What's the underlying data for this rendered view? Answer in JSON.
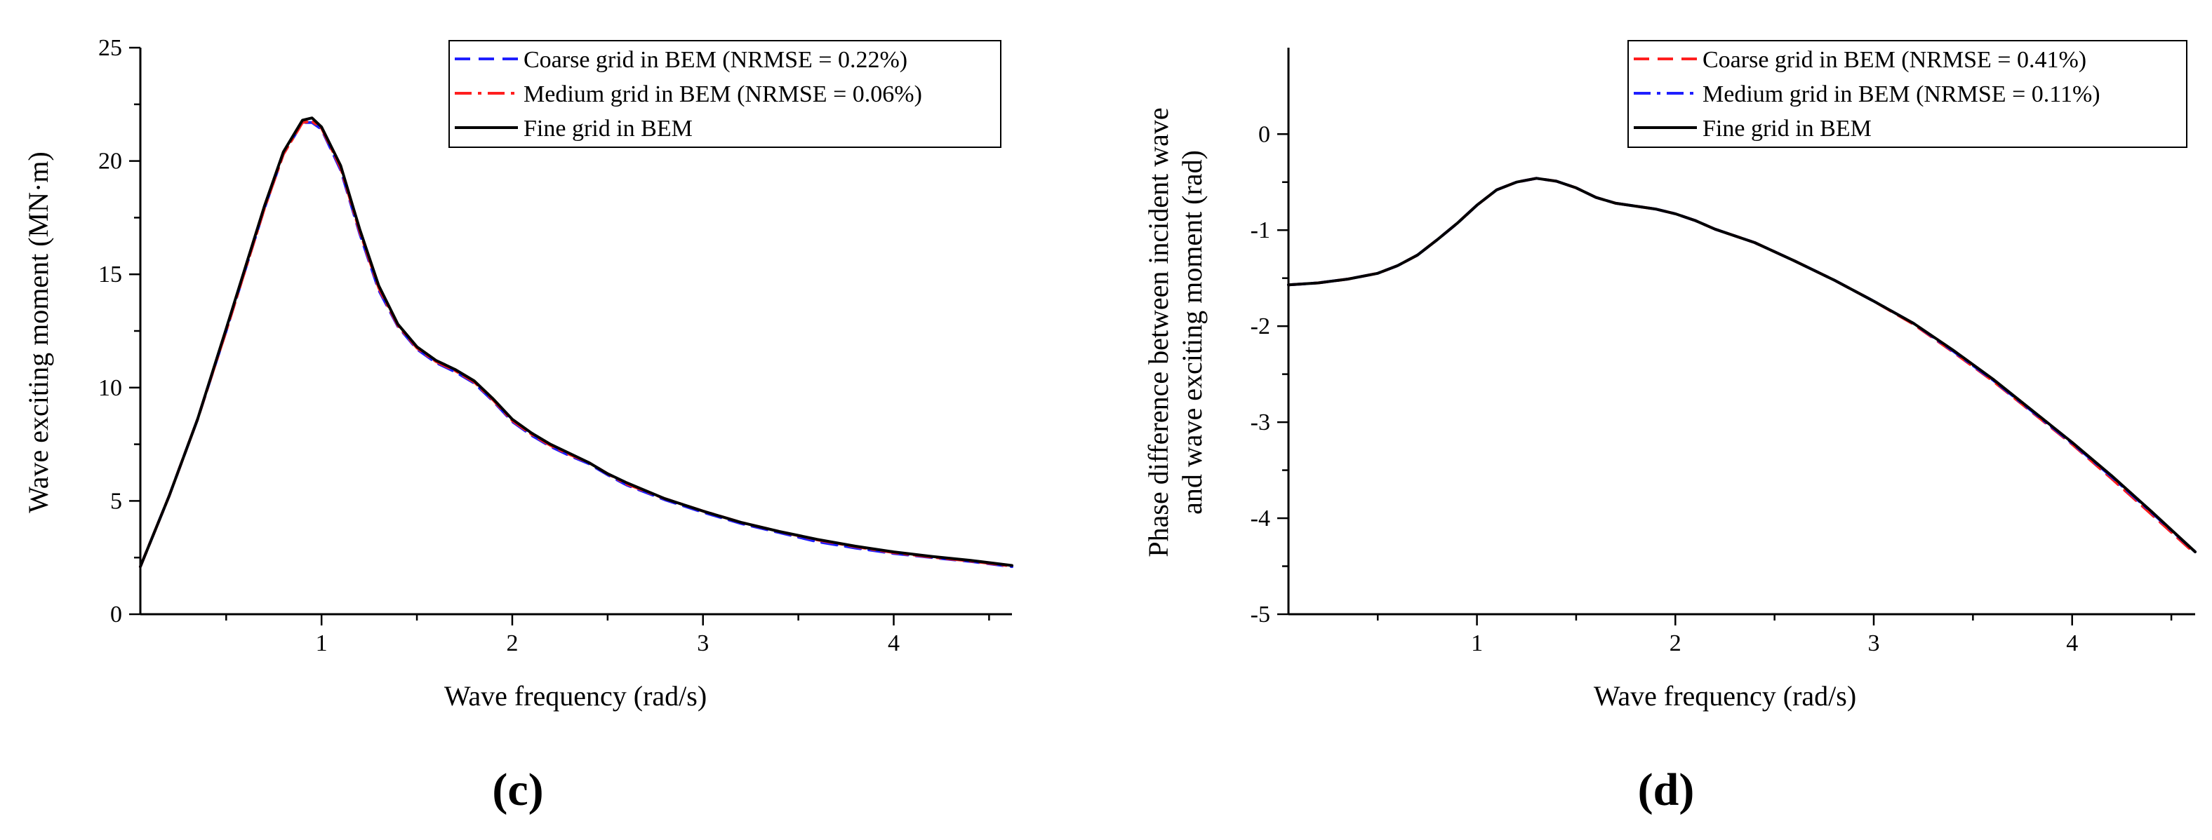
{
  "chart_data": [
    {
      "type": "line",
      "panel_label": "(c)",
      "title": "",
      "xlabel": "Wave frequency (rad/s)",
      "ylabel": "Wave exciting moment (MN·m)",
      "xlim": [
        0.05,
        4.62
      ],
      "ylim": [
        0,
        25
      ],
      "xticks": [
        1,
        2,
        3,
        4
      ],
      "yticks": [
        0,
        5,
        10,
        15,
        20,
        25
      ],
      "legend_position": "top-right",
      "grid": false,
      "x": [
        0.05,
        0.2,
        0.35,
        0.5,
        0.6,
        0.7,
        0.8,
        0.9,
        0.95,
        1.0,
        1.1,
        1.2,
        1.3,
        1.4,
        1.5,
        1.6,
        1.7,
        1.8,
        1.9,
        2.0,
        2.1,
        2.2,
        2.3,
        2.4,
        2.5,
        2.6,
        2.8,
        3.0,
        3.2,
        3.4,
        3.6,
        3.8,
        4.0,
        4.2,
        4.4,
        4.62
      ],
      "series": [
        {
          "name": "Coarse grid in BEM (NRMSE = 0.22%)",
          "color": "#1f1fff",
          "dash": "dashed",
          "values": [
            2.1,
            5.2,
            8.6,
            12.5,
            15.2,
            17.9,
            20.3,
            21.7,
            21.7,
            21.4,
            19.6,
            16.8,
            14.3,
            12.7,
            11.7,
            11.1,
            10.7,
            10.2,
            9.4,
            8.5,
            7.9,
            7.4,
            7.0,
            6.65,
            6.15,
            5.7,
            5.05,
            4.5,
            4.0,
            3.6,
            3.2,
            2.92,
            2.68,
            2.5,
            2.33,
            2.1
          ]
        },
        {
          "name": "Medium grid in BEM (NRMSE = 0.06%)",
          "color": "#ff1f1f",
          "dash": "dashdot",
          "values": [
            2.1,
            5.2,
            8.6,
            12.5,
            15.2,
            17.9,
            20.3,
            21.7,
            21.75,
            21.45,
            19.7,
            16.9,
            14.4,
            12.75,
            11.75,
            11.15,
            10.75,
            10.25,
            9.45,
            8.55,
            7.95,
            7.45,
            7.05,
            6.7,
            6.2,
            5.75,
            5.1,
            4.55,
            4.05,
            3.65,
            3.28,
            2.98,
            2.72,
            2.52,
            2.35,
            2.12
          ]
        },
        {
          "name": "Fine grid in BEM",
          "color": "#000000",
          "dash": "solid",
          "values": [
            2.1,
            5.2,
            8.6,
            12.6,
            15.3,
            18.0,
            20.4,
            21.8,
            21.9,
            21.5,
            19.8,
            17.0,
            14.5,
            12.8,
            11.8,
            11.2,
            10.8,
            10.3,
            9.5,
            8.6,
            8.0,
            7.5,
            7.1,
            6.7,
            6.2,
            5.8,
            5.1,
            4.55,
            4.05,
            3.65,
            3.3,
            3.0,
            2.75,
            2.55,
            2.38,
            2.15
          ]
        }
      ]
    },
    {
      "type": "line",
      "panel_label": "(d)",
      "title": "",
      "xlabel": "Wave frequency (rad/s)",
      "ylabel_line1": "Phase difference between incident wave",
      "ylabel_line2": "and wave exciting moment (rad)",
      "xlim": [
        0.05,
        4.62
      ],
      "ylim": [
        -5,
        0.9
      ],
      "xticks": [
        1,
        2,
        3,
        4
      ],
      "yticks": [
        0,
        -1,
        -2,
        -3,
        -4,
        -5
      ],
      "legend_position": "top-right",
      "grid": false,
      "x": [
        0.05,
        0.2,
        0.35,
        0.5,
        0.6,
        0.7,
        0.8,
        0.9,
        1.0,
        1.1,
        1.2,
        1.3,
        1.4,
        1.5,
        1.6,
        1.7,
        1.8,
        1.9,
        2.0,
        2.1,
        2.2,
        2.4,
        2.6,
        2.8,
        3.0,
        3.2,
        3.4,
        3.6,
        3.8,
        4.0,
        4.2,
        4.4,
        4.62
      ],
      "series": [
        {
          "name": "Coarse grid in BEM (NRMSE = 0.41%)",
          "color": "#ff1f1f",
          "dash": "dashed",
          "values": [
            -1.57,
            -1.55,
            -1.51,
            -1.45,
            -1.37,
            -1.26,
            -1.1,
            -0.93,
            -0.74,
            -0.58,
            -0.5,
            -0.46,
            -0.49,
            -0.56,
            -0.66,
            -0.72,
            -0.75,
            -0.78,
            -0.83,
            -0.9,
            -0.99,
            -1.13,
            -1.32,
            -1.52,
            -1.74,
            -1.98,
            -2.27,
            -2.57,
            -2.9,
            -3.23,
            -3.59,
            -3.96,
            -4.37
          ]
        },
        {
          "name": "Medium grid in BEM (NRMSE = 0.11%)",
          "color": "#1f1fff",
          "dash": "dashdot",
          "values": [
            -1.57,
            -1.55,
            -1.51,
            -1.45,
            -1.37,
            -1.26,
            -1.1,
            -0.93,
            -0.74,
            -0.58,
            -0.5,
            -0.46,
            -0.49,
            -0.56,
            -0.66,
            -0.72,
            -0.75,
            -0.78,
            -0.83,
            -0.9,
            -0.99,
            -1.13,
            -1.32,
            -1.52,
            -1.74,
            -1.97,
            -2.26,
            -2.56,
            -2.89,
            -3.22,
            -3.57,
            -3.94,
            -4.35
          ]
        },
        {
          "name": "Fine grid in BEM",
          "color": "#000000",
          "dash": "solid",
          "values": [
            -1.57,
            -1.55,
            -1.51,
            -1.45,
            -1.37,
            -1.26,
            -1.1,
            -0.93,
            -0.74,
            -0.58,
            -0.5,
            -0.46,
            -0.49,
            -0.56,
            -0.66,
            -0.72,
            -0.75,
            -0.78,
            -0.83,
            -0.9,
            -0.99,
            -1.13,
            -1.32,
            -1.52,
            -1.74,
            -1.97,
            -2.25,
            -2.55,
            -2.88,
            -3.21,
            -3.56,
            -3.93,
            -4.35
          ]
        }
      ]
    }
  ]
}
